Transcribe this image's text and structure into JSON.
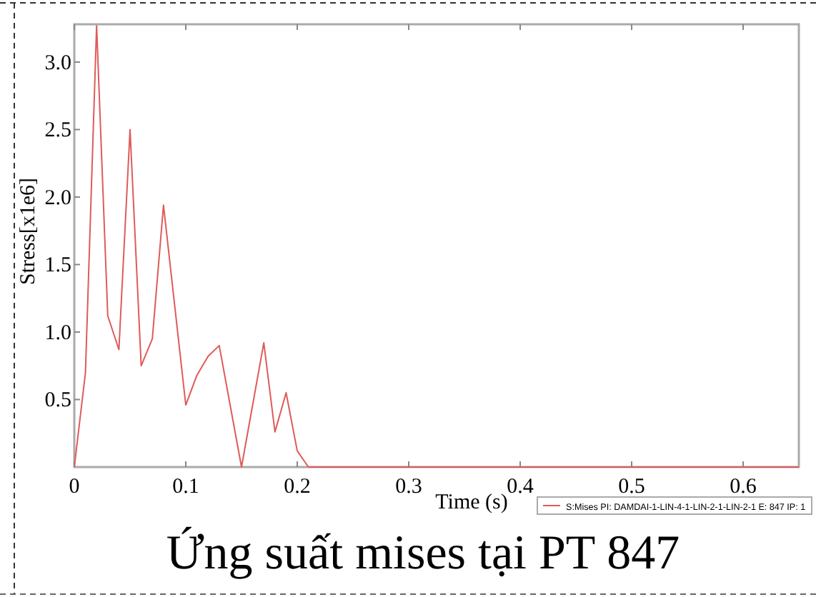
{
  "chart_data": {
    "type": "line",
    "title": "Ứng suất mises tại PT 847",
    "xlabel": "Time (s)",
    "ylabel": "Stress[x1e6]",
    "x": [
      0,
      0.01,
      0.02,
      0.03,
      0.04,
      0.05,
      0.06,
      0.07,
      0.08,
      0.1,
      0.11,
      0.12,
      0.13,
      0.15,
      0.17,
      0.18,
      0.19,
      0.2,
      0.21,
      0.65
    ],
    "series": [
      {
        "name": "S:Mises PI: DAMDAI-1-LIN-4-1-LIN-2-1-LIN-2-1 E: 847 IP: 1",
        "color": "#e05a5a",
        "values": [
          0,
          0.7,
          3.27,
          1.12,
          0.87,
          2.5,
          0.75,
          0.95,
          1.94,
          0.46,
          0.68,
          0.82,
          0.9,
          0,
          0.92,
          0.26,
          0.55,
          0.12,
          0,
          0
        ]
      }
    ],
    "xlim": [
      0,
      0.65
    ],
    "xticks": [
      0,
      0.1,
      0.2,
      0.3,
      0.4,
      0.5,
      0.6
    ],
    "ylim": [
      0,
      3.28
    ],
    "yticks": [
      0.5,
      {
        "value": 1,
        "label": "1.0"
      },
      1.5,
      {
        "value": 2,
        "label": "2.0"
      },
      2.5,
      {
        "value": 3,
        "label": "3.0"
      }
    ],
    "grid": false,
    "legend": "bottom right",
    "marker": "none",
    "line_style": "solid"
  }
}
